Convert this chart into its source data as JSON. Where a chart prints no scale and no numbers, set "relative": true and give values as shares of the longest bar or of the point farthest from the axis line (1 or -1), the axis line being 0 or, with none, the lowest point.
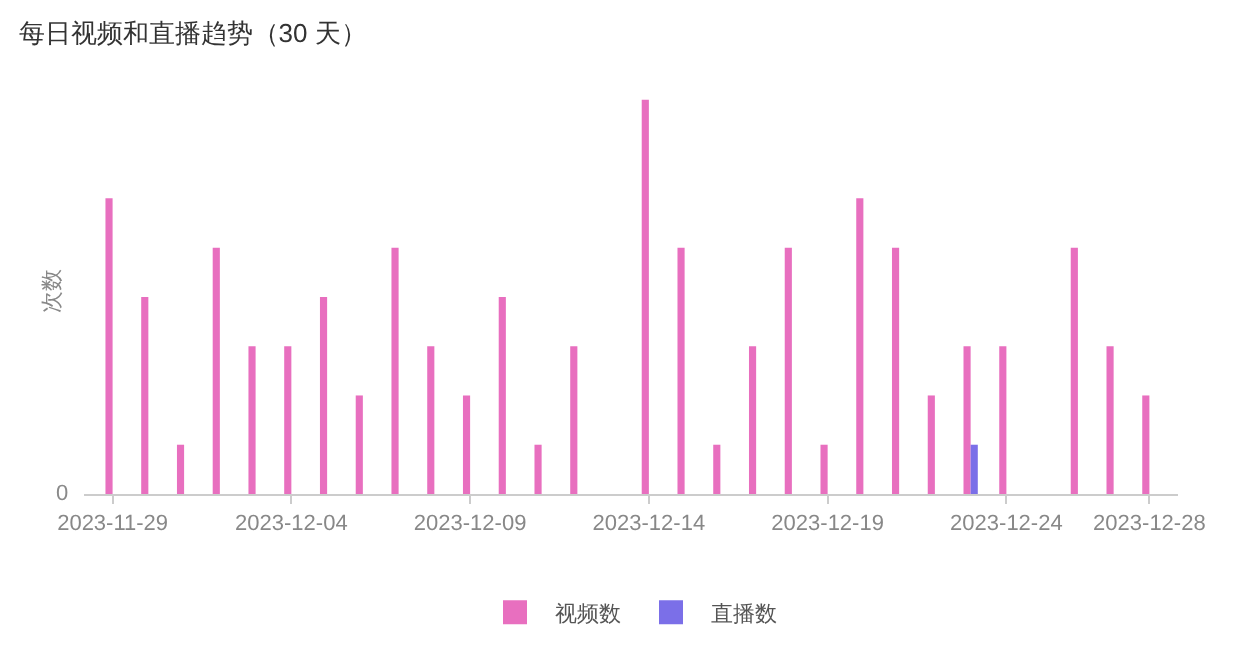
{
  "chart_data": {
    "type": "bar",
    "title": "每日视频和直播趋势（30 天）",
    "ylabel": "次数",
    "relative": true,
    "categories": [
      "2023-11-29",
      null,
      null,
      null,
      null,
      "2023-12-04",
      null,
      null,
      null,
      null,
      "2023-12-09",
      null,
      null,
      null,
      null,
      "2023-12-14",
      null,
      null,
      null,
      null,
      "2023-12-19",
      null,
      null,
      null,
      null,
      "2023-12-24",
      null,
      null,
      null,
      "2023-12-28"
    ],
    "series": [
      {
        "name": "视频数",
        "color": "#e86fbf",
        "values": [
          0.75,
          0.5,
          0.125,
          0.625,
          0.375,
          0.375,
          0.5,
          0.25,
          0.625,
          0.375,
          0.25,
          0.5,
          0.125,
          0.375,
          0,
          1,
          0.625,
          0.125,
          0.375,
          0.625,
          0.125,
          0.75,
          0.625,
          0.25,
          0.375,
          0.375,
          0,
          0.625,
          0.375,
          0.25
        ]
      },
      {
        "name": "直播数",
        "color": "#7b6fe8",
        "values": [
          0,
          0,
          0,
          0,
          0,
          0,
          0,
          0,
          0,
          0,
          0,
          0,
          0,
          0,
          0,
          0,
          0,
          0,
          0,
          0,
          0,
          0,
          0,
          0,
          0.125,
          0,
          0,
          0,
          0,
          0
        ]
      }
    ],
    "annotations": [
      "0"
    ],
    "grid": false,
    "legend": "bottom"
  }
}
